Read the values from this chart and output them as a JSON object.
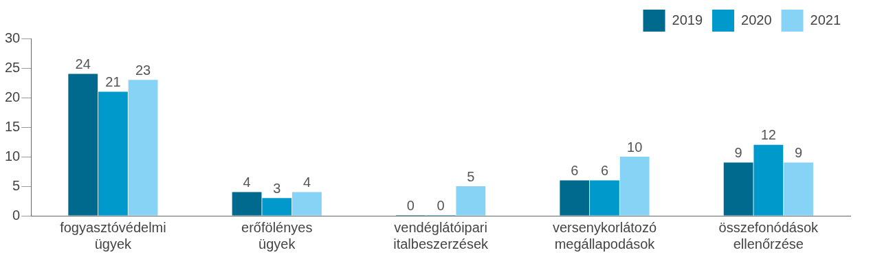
{
  "chart_data": {
    "type": "bar",
    "categories": [
      "fogyasztóvédelmi ügyek",
      "erőfölényes ügyek",
      "vendéglátóipari italbeszerzések",
      "versenykorlátozó megállapodások",
      "összefonódások ellenőrzése"
    ],
    "series": [
      {
        "name": "2019",
        "color": "#006a8e",
        "values": [
          24,
          4,
          0,
          6,
          9
        ]
      },
      {
        "name": "2020",
        "color": "#0099cc",
        "values": [
          21,
          3,
          0,
          6,
          12
        ]
      },
      {
        "name": "2021",
        "color": "#87d3f5",
        "values": [
          23,
          4,
          5,
          10,
          9
        ]
      }
    ],
    "ylim": [
      0,
      30
    ],
    "yticks": [
      0,
      5,
      10,
      15,
      20,
      25,
      30
    ],
    "grid": false,
    "legend": "top right",
    "data_labels": true
  }
}
